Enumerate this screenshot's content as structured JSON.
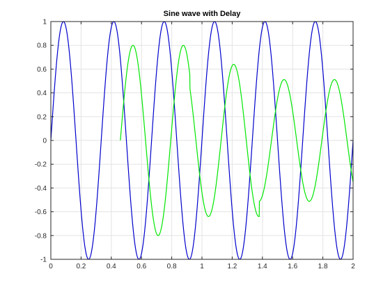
{
  "chart_data": {
    "type": "line",
    "title": "Sine wave with Delay",
    "xlabel": "",
    "ylabel": "",
    "xlim": [
      0,
      2
    ],
    "ylim": [
      -1,
      1
    ],
    "grid": true,
    "x_ticks": [
      "0",
      "0.2",
      "0.4",
      "0.6",
      "0.8",
      "1",
      "1.2",
      "1.4",
      "1.6",
      "1.8",
      "2"
    ],
    "y_ticks": [
      "-1",
      "-0.8",
      "-0.6",
      "-0.4",
      "-0.2",
      "0",
      "0.2",
      "0.4",
      "0.6",
      "0.8",
      "1"
    ],
    "series": [
      {
        "color": "#0000cc",
        "frequency": 3,
        "amplitude": 1,
        "x_range": [
          0,
          2
        ]
      },
      {
        "color": "#00e600",
        "frequency": 3,
        "x_range": [
          0.46,
          2
        ],
        "segments": [
          {
            "x_start": 0.46,
            "x_end": 0.92,
            "amplitude": 0.8
          },
          {
            "x_start": 0.92,
            "x_end": 1.38,
            "amplitude": 0.64
          },
          {
            "x_start": 1.38,
            "x_end": 2.0,
            "amplitude": 0.512
          }
        ]
      }
    ]
  }
}
